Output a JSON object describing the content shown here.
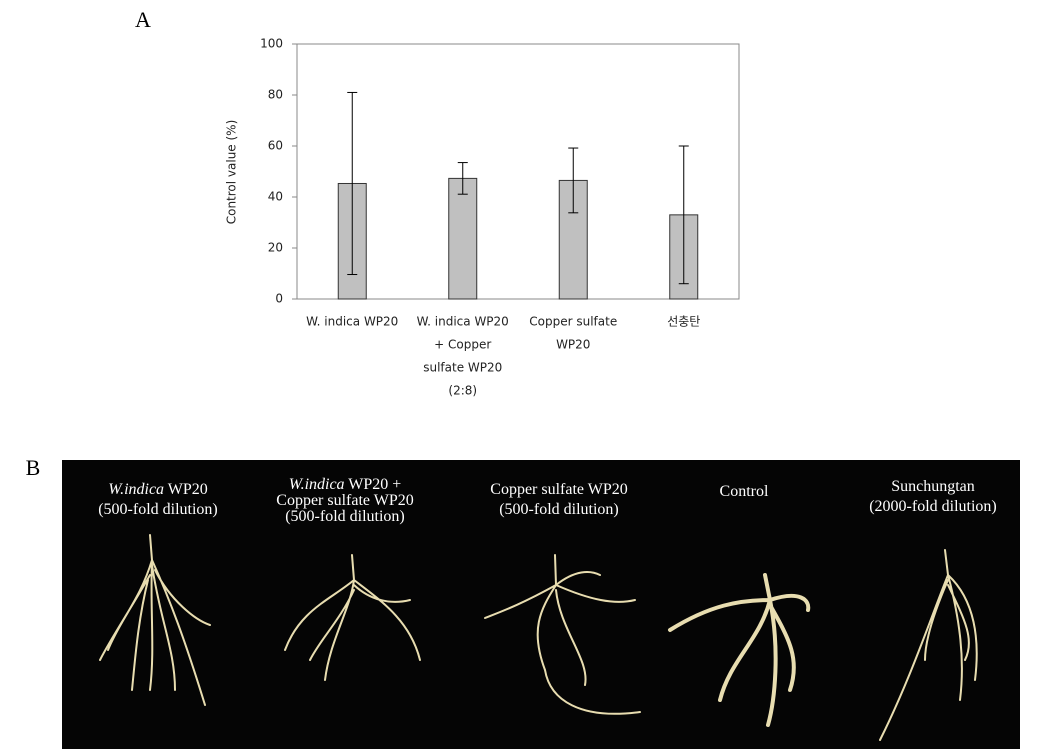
{
  "chart_data": {
    "type": "bar",
    "ylabel": "Control value (%)",
    "categories": [
      [
        "W. indica WP20"
      ],
      [
        "W. indica WP20",
        "+ Copper",
        "sulfate WP20",
        "(2:8)"
      ],
      [
        "Copper sulfate",
        "WP20"
      ],
      [
        "선충탄"
      ]
    ],
    "values": [
      45.3,
      47.3,
      46.5,
      33
    ],
    "errors": [
      35.7,
      6.2,
      12.7,
      27
    ],
    "color": "#c0c0c0",
    "ylim": [
      0,
      100
    ],
    "yticks": [
      0,
      20,
      40,
      60,
      80,
      100
    ],
    "grid": false
  },
  "panels": {
    "a": "A",
    "b": "B"
  },
  "photo": {
    "captions": [
      {
        "italic": "W.indica",
        "lines": [
          " WP20",
          "(500-fold dilution)"
        ]
      },
      {
        "italic": "W.indica",
        "lines": [
          " WP20 +",
          "Copper sulfate WP20",
          "(500-fold dilution)"
        ]
      },
      {
        "lines": [
          "Copper sulfate WP20",
          "(500-fold dilution)"
        ]
      },
      {
        "lines": [
          "Control"
        ]
      },
      {
        "lines": [
          "Sunchungtan",
          "(2000-fold dilution)"
        ]
      }
    ]
  }
}
